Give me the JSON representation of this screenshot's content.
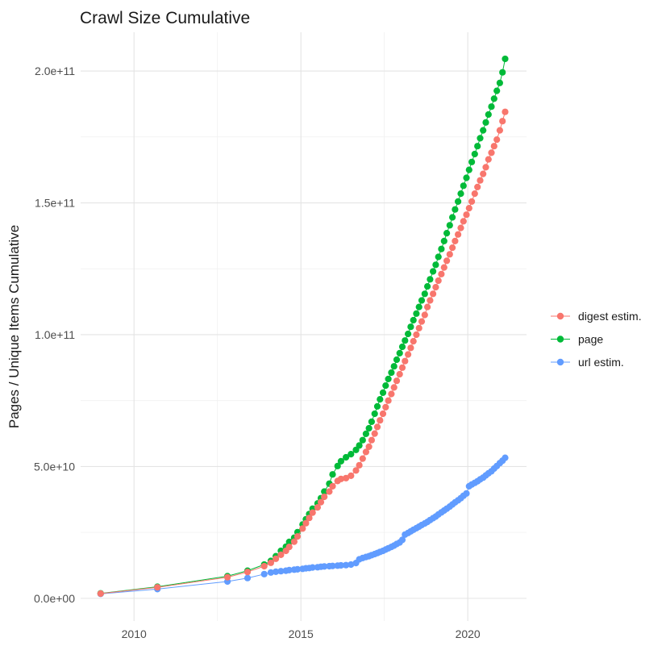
{
  "title": "Crawl Size Cumulative",
  "background_color": "#FFFFFF",
  "chart_data": {
    "type": "line",
    "subtype": "scatter-line-cumulative",
    "x_unit": "year (decimal)",
    "y_unit": "1e9 pages / unique items (billions)",
    "grid": {
      "major_color": "#E4E4E4",
      "minor_color": "#F0F0F0",
      "grid_on": true
    },
    "x_axis": {
      "lim": [
        2008.4,
        2021.76
      ],
      "ticks": [
        {
          "label": "2010",
          "value": 2010
        },
        {
          "label": "2015",
          "value": 2015
        },
        {
          "label": "2020",
          "value": 2020
        }
      ],
      "minor": [
        2012.5,
        2017.5
      ]
    },
    "y_axis": {
      "label": "Pages / Unique Items Cumulative",
      "lim": [
        -8.6,
        214.7
      ],
      "ticks": [
        {
          "label": "0.0e+00",
          "value": 0
        },
        {
          "label": "5.0e+10",
          "value": 50
        },
        {
          "label": "1.0e+11",
          "value": 100
        },
        {
          "label": "1.5e+11",
          "value": 150
        },
        {
          "label": "2.0e+11",
          "value": 200
        }
      ],
      "minor": [
        25,
        75,
        125,
        175
      ]
    },
    "legend_position": "right",
    "x": [
      2009,
      2010.7,
      2012.8,
      2013.4,
      2013.9,
      2014.1,
      2014.25,
      2014.4,
      2014.55,
      2014.65,
      2014.8,
      2014.9,
      2015.05,
      2015.15,
      2015.25,
      2015.35,
      2015.5,
      2015.6,
      2015.7,
      2015.85,
      2015.95,
      2016.1,
      2016.2,
      2016.35,
      2016.5,
      2016.65,
      2016.75,
      2016.85,
      2016.95,
      2017.04,
      2017.12,
      2017.21,
      2017.29,
      2017.37,
      2017.46,
      2017.54,
      2017.62,
      2017.71,
      2017.79,
      2017.87,
      2017.96,
      2018.04,
      2018.12,
      2018.21,
      2018.29,
      2018.37,
      2018.46,
      2018.54,
      2018.62,
      2018.71,
      2018.79,
      2018.87,
      2018.96,
      2019.04,
      2019.12,
      2019.21,
      2019.29,
      2019.37,
      2019.46,
      2019.54,
      2019.62,
      2019.71,
      2019.79,
      2019.87,
      2019.96,
      2020.04,
      2020.12,
      2020.21,
      2020.29,
      2020.37,
      2020.46,
      2020.54,
      2020.62,
      2020.71,
      2020.79,
      2020.87,
      2020.96,
      2021.04,
      2021.12
    ],
    "series": [
      {
        "name": "digest estim.",
        "color": "#F8766D",
        "values": [
          1.8,
          4.2,
          8.0,
          10.0,
          12.2,
          13.5,
          15.0,
          16.5,
          18.0,
          19.5,
          21.5,
          23.5,
          26.5,
          28.5,
          30.5,
          32.5,
          34.5,
          36.5,
          38.5,
          40.5,
          42.5,
          44.5,
          45.3,
          45.6,
          46.5,
          48.5,
          50.5,
          53.0,
          55.5,
          57.5,
          60.0,
          62.5,
          65.0,
          67.5,
          70.0,
          72.5,
          75.0,
          77.5,
          80.0,
          82.5,
          85.0,
          87.5,
          90.0,
          92.5,
          95.0,
          97.5,
          100.0,
          102.5,
          105.0,
          107.5,
          110.5,
          113.0,
          115.5,
          118.0,
          120.5,
          123.0,
          125.5,
          128.0,
          130.5,
          133.0,
          135.5,
          138.0,
          140.5,
          143.0,
          145.5,
          148.0,
          150.5,
          153.5,
          156.0,
          158.5,
          161.0,
          163.5,
          166.5,
          169.0,
          171.5,
          174.0,
          177.5,
          181.0,
          184.5
        ]
      },
      {
        "name": "page",
        "color": "#00BA38",
        "values": [
          1.9,
          4.4,
          8.4,
          10.5,
          12.8,
          14.2,
          16.0,
          18.0,
          19.6,
          21.4,
          23.0,
          25.1,
          28.0,
          30.0,
          32.0,
          34.0,
          36.0,
          38.0,
          40.5,
          43.5,
          47.0,
          50.2,
          52.0,
          53.5,
          54.7,
          56.3,
          58.0,
          60.0,
          62.4,
          64.5,
          67.0,
          70.0,
          72.8,
          75.5,
          78.0,
          80.7,
          83.2,
          85.6,
          88.0,
          90.5,
          93.0,
          95.4,
          97.8,
          100.3,
          103.0,
          105.5,
          108.0,
          110.5,
          113.0,
          115.5,
          118.3,
          121.0,
          124.0,
          126.5,
          129.5,
          132.5,
          135.5,
          138.5,
          141.5,
          144.5,
          147.5,
          150.5,
          153.5,
          156.5,
          159.5,
          162.5,
          165.5,
          168.5,
          171.5,
          174.5,
          177.5,
          180.5,
          183.5,
          186.5,
          189.5,
          192.5,
          195.5,
          199.5,
          204.6
        ]
      },
      {
        "name": "url estim.",
        "color": "#619CFF",
        "values": [
          1.7,
          3.5,
          6.4,
          7.7,
          9.2,
          9.8,
          10.1,
          10.3,
          10.5,
          10.7,
          10.9,
          11.0,
          11.2,
          11.4,
          11.5,
          11.7,
          11.8,
          12.0,
          12.1,
          12.2,
          12.3,
          12.4,
          12.5,
          12.6,
          12.8,
          13.4,
          14.8,
          15.3,
          15.7,
          16.0,
          16.4,
          16.8,
          17.2,
          17.6,
          18.0,
          18.5,
          19.0,
          19.5,
          20.0,
          20.6,
          21.2,
          22.2,
          24.2,
          24.8,
          25.4,
          26.0,
          26.6,
          27.2,
          27.8,
          28.4,
          29.0,
          29.7,
          30.4,
          31.0,
          31.8,
          32.6,
          33.3,
          34.0,
          34.8,
          35.6,
          36.4,
          37.2,
          38.0,
          38.9,
          39.8,
          42.5,
          43.2,
          43.8,
          44.4,
          45.1,
          45.8,
          46.6,
          47.4,
          48.2,
          49.2,
          50.2,
          51.3,
          52.2,
          53.3
        ]
      }
    ]
  }
}
